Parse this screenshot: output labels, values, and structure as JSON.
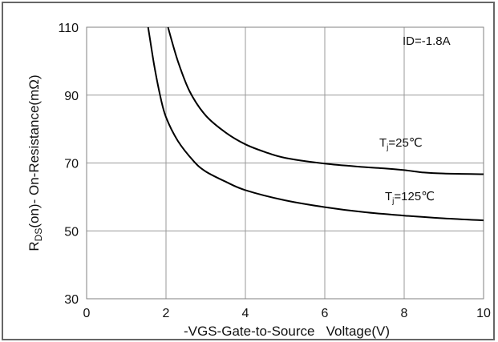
{
  "chart_data": {
    "type": "line",
    "title": "",
    "xlabel": "-VGS-Gate-to-Source   Voltage(V)",
    "ylabel": {
      "main": "R",
      "sub": "DS",
      "rest": "(on)- On-Resistance(mΩ)"
    },
    "xlim": [
      0,
      10
    ],
    "ylim": [
      30,
      110
    ],
    "xticks": [
      "0",
      "2",
      "4",
      "6",
      "8",
      "10"
    ],
    "yticks": [
      "30",
      "50",
      "70",
      "90",
      "110"
    ],
    "grid": true,
    "annotations": {
      "condition": "ID=-1.8A",
      "tj25": {
        "main": "T",
        "sub": "j",
        "rest": "=25℃"
      },
      "tj125": {
        "main": "T",
        "sub": "j",
        "rest": "=125℃"
      }
    },
    "series": [
      {
        "name": "Tj=25℃",
        "x": [
          2.05,
          2.3,
          2.6,
          3.0,
          3.5,
          4.0,
          4.5,
          5.0,
          6.0,
          7.0,
          7.5,
          8.0,
          8.5,
          9.0,
          10.0
        ],
        "y": [
          110,
          100,
          91,
          84,
          79,
          75.5,
          73.2,
          71.5,
          69.8,
          68.8,
          68.4,
          67.9,
          67.2,
          66.9,
          66.7
        ]
      },
      {
        "name": "Tj=125℃",
        "x": [
          1.55,
          1.7,
          1.85,
          2.0,
          2.3,
          2.7,
          3.0,
          3.5,
          4.0,
          5.0,
          6.0,
          7.0,
          8.0,
          9.0,
          10.0
        ],
        "y": [
          110,
          99,
          90,
          83.5,
          76.5,
          70.5,
          67.5,
          64.5,
          62,
          59,
          57,
          55.5,
          54.5,
          53.7,
          53.1
        ]
      }
    ],
    "colors": {
      "line": "#000000",
      "grid": "#999999",
      "axis": "#808080"
    }
  }
}
